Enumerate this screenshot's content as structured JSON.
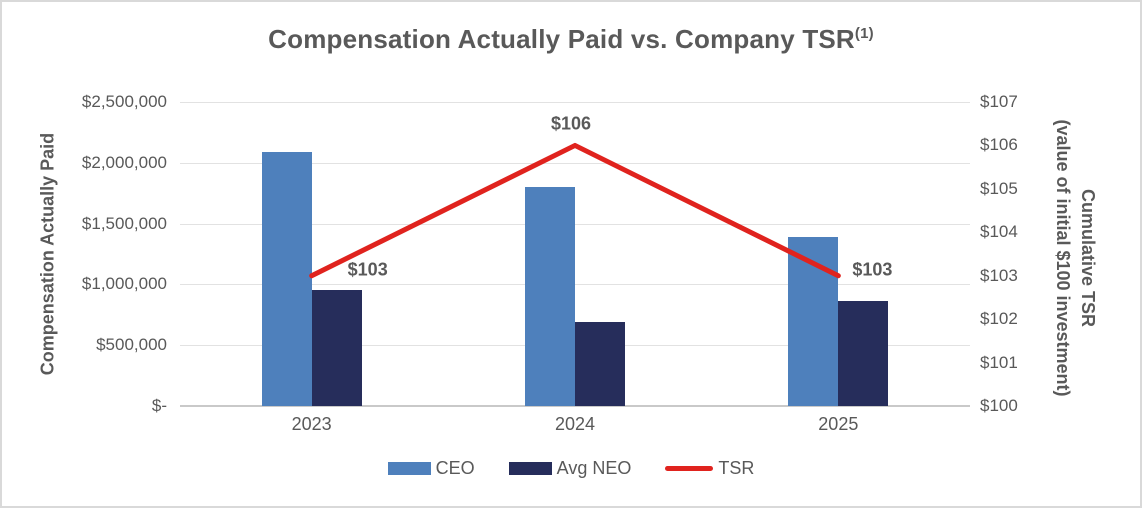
{
  "title": {
    "text": "Compensation Actually Paid vs. Company TSR",
    "superscript": "(1)"
  },
  "colors": {
    "ceo_bar": "#4e80bc",
    "avg_neo_bar": "#262d5b",
    "tsr_line": "#e0231e",
    "text": "#595959",
    "gridline": "#e2e2e2",
    "axis_line": "#c9c9c9",
    "border": "#d9d9d9"
  },
  "legend": {
    "items": [
      {
        "label": "CEO",
        "swatch": "bar",
        "color": "#4e80bc"
      },
      {
        "label": "Avg NEO",
        "swatch": "bar",
        "color": "#262d5b"
      },
      {
        "label": "TSR",
        "swatch": "line",
        "color": "#e0231e"
      }
    ]
  },
  "chart_data": {
    "type": "combo_bar_line",
    "categories": [
      "2023",
      "2024",
      "2025"
    ],
    "series": [
      {
        "name": "CEO",
        "type": "bar",
        "axis": "left",
        "color": "#4e80bc",
        "values": [
          2090000,
          1800000,
          1390000
        ]
      },
      {
        "name": "Avg NEO",
        "type": "bar",
        "axis": "left",
        "color": "#262d5b",
        "values": [
          950000,
          690000,
          865000
        ]
      },
      {
        "name": "TSR",
        "type": "line",
        "axis": "right",
        "color": "#e0231e",
        "values": [
          103,
          106,
          103
        ],
        "point_labels": [
          "$103",
          "$106",
          "$103"
        ]
      }
    ],
    "left_axis": {
      "label": "Compensation Actually Paid",
      "range": [
        0,
        2500000
      ],
      "tick_step": 500000,
      "tick_labels": [
        "$2,500,000",
        "$2,000,000",
        "$1,500,000",
        "$1,000,000",
        "$500,000",
        "$-"
      ]
    },
    "right_axis": {
      "label_line1": "Cumulative TSR",
      "label_line2": "(value of initial $100 investment)",
      "range": [
        100,
        107
      ],
      "tick_step": 1,
      "tick_labels": [
        "$107",
        "$106",
        "$105",
        "$104",
        "$103",
        "$102",
        "$101",
        "$100"
      ]
    },
    "grid": {
      "horizontal": true,
      "vertical": false
    },
    "legend_position": "bottom"
  }
}
